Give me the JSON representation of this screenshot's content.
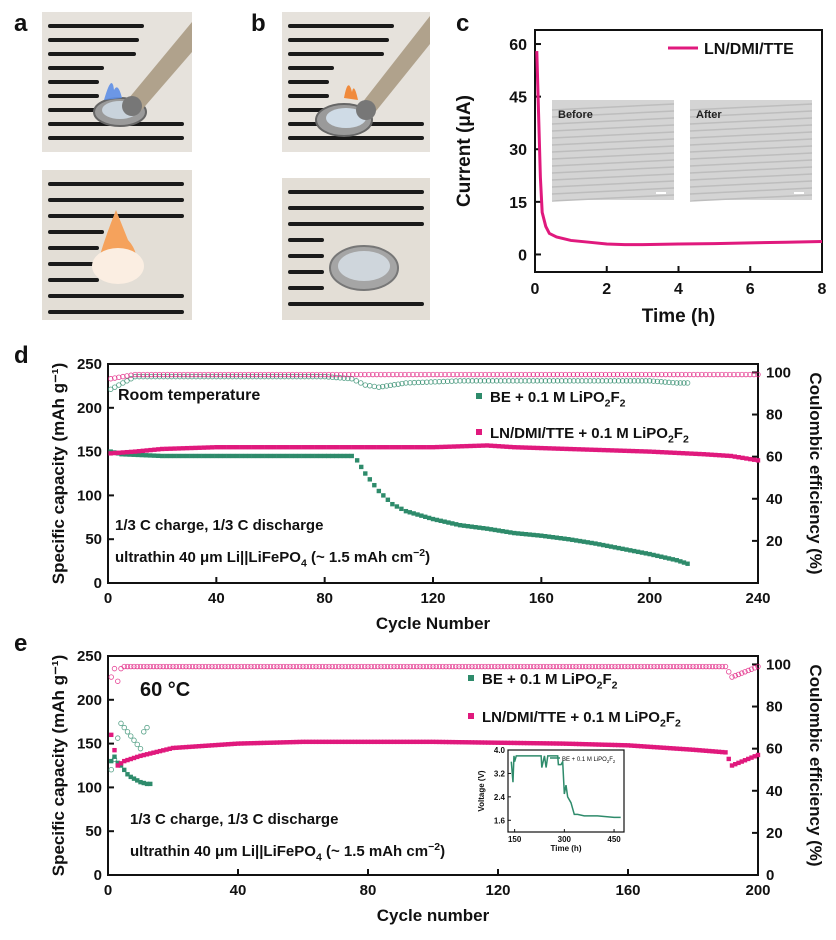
{
  "panels": {
    "a": "a",
    "b": "b",
    "c": "c",
    "d": "d",
    "e": "e"
  },
  "chart_data": [
    {
      "type": "line",
      "panel": "c",
      "xlabel": "Time (h)",
      "ylabel": "Current (μA)",
      "xlim": [
        0,
        8
      ],
      "ylim": [
        -5,
        64
      ],
      "xticks": [
        0,
        2,
        4,
        6,
        8
      ],
      "yticks": [
        0,
        15,
        30,
        45,
        60
      ],
      "legend_position": "top-right",
      "series": [
        {
          "name": "LN/DMI/TTE",
          "color": "#e0197d",
          "x": [
            0.05,
            0.1,
            0.15,
            0.2,
            0.3,
            0.4,
            0.6,
            0.8,
            1.0,
            1.5,
            2.0,
            2.5,
            3.0,
            4.0,
            5.0,
            6.0,
            7.0,
            8.0
          ],
          "y": [
            58,
            40,
            22,
            12,
            8,
            6,
            5,
            4.5,
            4,
            3.5,
            3,
            2.8,
            2.8,
            3,
            3.1,
            3.3,
            3.5,
            3.7
          ]
        }
      ],
      "inset_labels": [
        "Before",
        "After"
      ]
    },
    {
      "type": "scatter",
      "panel": "d",
      "xlabel": "Cycle Number",
      "ylabel": "Specific capacity (mAh g⁻¹)",
      "y2label": "Coulombic efficiency (%)",
      "xlim": [
        0,
        240
      ],
      "ylim": [
        0,
        250
      ],
      "y2lim": [
        0,
        104
      ],
      "xticks": [
        0,
        40,
        80,
        120,
        160,
        200,
        240
      ],
      "yticks": [
        0,
        50,
        100,
        150,
        200,
        250
      ],
      "y2ticks": [
        20,
        40,
        60,
        80,
        100
      ],
      "annotations": {
        "temp": "Room temperature",
        "rate": "1/3 C charge, 1/3 C discharge",
        "cell": "ultrathin 40 μm Li||LiFePO",
        "cell_sub": "4",
        "cell_tail": " (~ 1.5 mAh cm",
        "cell_sup": "−2",
        "cell_end": ")"
      },
      "series": [
        {
          "name": "BE + 0.1 M LiPO",
          "name_sub": "2",
          "name_tail": "F",
          "name_sub2": "2",
          "color": "#2e8b6b",
          "capacity": {
            "x": [
              1,
              5,
              20,
              40,
              60,
              80,
              90,
              92,
              95,
              100,
              105,
              110,
              120,
              130,
              140,
              150,
              160,
              170,
              180,
              190,
              200,
              210,
              214
            ],
            "y": [
              150,
              147,
              145,
              145,
              145,
              145,
              145,
              140,
              125,
              105,
              90,
              82,
              73,
              66,
              62,
              57,
              54,
              50,
              45,
              39,
              33,
              26,
              22
            ]
          },
          "efficiency": {
            "x": [
              1,
              10,
              40,
              80,
              90,
              95,
              100,
              110,
              130,
              160,
              190,
              200,
              210,
              214
            ],
            "y": [
              92,
              98,
              98,
              98,
              97,
              94,
              93,
              95,
              96,
              96,
              96,
              96,
              95,
              95
            ]
          }
        },
        {
          "name": "LN/DMI/TTE + 0.1 M LiPO",
          "name_sub": "2",
          "name_tail": "F",
          "name_sub2": "2",
          "color": "#e0197d",
          "capacity": {
            "x": [
              1,
              10,
              20,
              40,
              60,
              80,
              100,
              120,
              140,
              150,
              160,
              180,
              200,
              220,
              230,
              240
            ],
            "y": [
              148,
              150,
              153,
              155,
              155,
              155,
              155,
              155,
              157,
              155,
              154,
              152,
              150,
              147,
              145,
              140
            ]
          },
          "efficiency": {
            "x": [
              1,
              10,
              40,
              80,
              120,
              160,
              200,
              240
            ],
            "y": [
              97,
              99,
              99,
              99,
              99,
              99,
              99,
              99
            ]
          }
        }
      ]
    },
    {
      "type": "scatter",
      "panel": "e",
      "xlabel": "Cycle number",
      "ylabel": "Specific capacity (mAh g⁻¹)",
      "y2label": "Coulombic efficiency (%)",
      "xlim": [
        0,
        200
      ],
      "ylim": [
        0,
        250
      ],
      "y2lim": [
        0,
        104
      ],
      "xticks": [
        0,
        40,
        80,
        120,
        160,
        200
      ],
      "yticks": [
        0,
        50,
        100,
        150,
        200,
        250
      ],
      "y2ticks": [
        0,
        20,
        40,
        60,
        80,
        100
      ],
      "annotations": {
        "temp": "60 °C",
        "rate": "1/3 C charge, 1/3 C discharge",
        "cell": "ultrathin 40 μm Li||LiFePO",
        "cell_sub": "4",
        "cell_tail": " (~ 1.5 mAh cm",
        "cell_sup": "−2",
        "cell_end": ")"
      },
      "series": [
        {
          "name": "BE + 0.1 M LiPO",
          "name_sub": "2",
          "name_tail": "F",
          "name_sub2": "2",
          "color": "#2e8b6b",
          "capacity": {
            "x": [
              1,
              2,
              3,
              4,
              5,
              6,
              7,
              8,
              9,
              10,
              11,
              12,
              13
            ],
            "y": [
              130,
              135,
              128,
              125,
              120,
              115,
              112,
              110,
              108,
              106,
              105,
              104,
              104
            ]
          },
          "efficiency": {
            "x": [
              1,
              2,
              3,
              4,
              5,
              6,
              7,
              8,
              9,
              10,
              11,
              12
            ],
            "y": [
              50,
              55,
              65,
              72,
              70,
              68,
              66,
              64,
              62,
              60,
              68,
              70
            ]
          }
        },
        {
          "name": "LN/DMI/TTE + 0.1 M LiPO",
          "name_sub": "2",
          "name_tail": "F",
          "name_sub2": "2",
          "color": "#e0197d",
          "capacity": {
            "x": [
              1,
              3,
              5,
              10,
              20,
              40,
              60,
              80,
              100,
              120,
              140,
              160,
              180,
              190,
              192,
              200
            ],
            "y": [
              160,
              125,
              130,
              136,
              145,
              150,
              152,
              152,
              152,
              151,
              150,
              148,
              143,
              140,
              125,
              137
            ]
          },
          "efficiency": {
            "x": [
              1,
              2,
              3,
              4,
              5,
              10,
              40,
              80,
              120,
              160,
              190,
              192,
              200
            ],
            "y": [
              94,
              98,
              92,
              98,
              99,
              99,
              99,
              99,
              99,
              99,
              99,
              94,
              99
            ]
          }
        }
      ],
      "inset": {
        "xlabel": "Time (h)",
        "ylabel": "Voltage (V)",
        "legend": "BE + 0.1 M LiPO",
        "legend_sub": "2",
        "legend_tail": "F",
        "legend_sub2": "2",
        "xlim": [
          130,
          480
        ],
        "ylim": [
          1.2,
          4.0
        ],
        "xticks": [
          150,
          300,
          450
        ],
        "yticks": [
          1.6,
          2.4,
          3.2,
          4.0
        ],
        "x": [
          140,
          145,
          148,
          150,
          155,
          230,
          232,
          240,
          245,
          250,
          280,
          282,
          290,
          295,
          300,
          305,
          310,
          320,
          330,
          340,
          360,
          400,
          450,
          470
        ],
        "y": [
          3.6,
          2.9,
          3.8,
          3.6,
          3.8,
          3.8,
          3.4,
          3.8,
          3.4,
          3.8,
          3.8,
          3.5,
          3.5,
          3.6,
          2.5,
          2.8,
          2.4,
          2.2,
          1.8,
          1.8,
          1.75,
          1.75,
          1.7,
          1.7
        ]
      }
    }
  ]
}
